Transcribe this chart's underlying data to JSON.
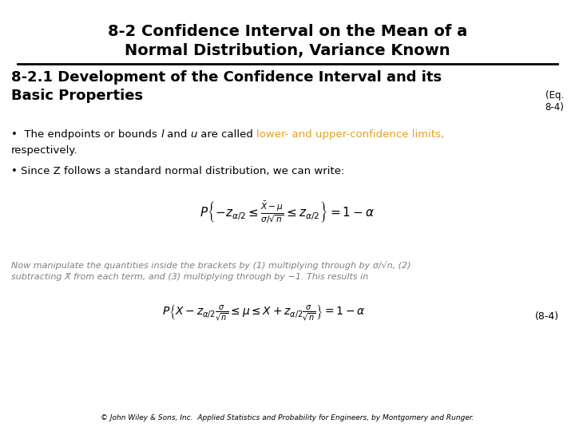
{
  "title_line1": "8-2 Confidence Interval on the Mean of a",
  "title_line2": "Normal Distribution, Variance Known",
  "subtitle_line1": "8-2.1 Development of the Confidence Interval and its",
  "subtitle_line2": "Basic Properties",
  "eq_label": "(Eq.\n8-4)",
  "bullet1_seg1": "•  The endpoints or bounds ",
  "bullet1_l": "l",
  "bullet1_and": " and ",
  "bullet1_u": "u",
  "bullet1_called": " are called ",
  "bullet1_orange": "lower- and upper-confidence limits,",
  "bullet1_line2": "respectively.",
  "bullet2": "• Since Z follows a standard normal distribution, we can write:",
  "gray_line1": "Now manipulate the quantities inside the brackets by (1) multiplying through by σ/√n, (2)",
  "gray_line2": "subtracting X̅ from each term, and (3) multiplying through by −1. This results in",
  "eq_number": "(8-4)",
  "footer": "© John Wiley & Sons, Inc.  Applied Statistics and Probability for Engineers, by Montgomery and Runger.",
  "bg_color": "#ffffff",
  "black": "#000000",
  "orange_color": "#e6a020",
  "gray_color": "#7f7f7f",
  "title_fontsize": 14,
  "subtitle_fontsize": 13,
  "body_fontsize": 9.5,
  "gray_fontsize": 8,
  "footer_fontsize": 6.5,
  "formula1_fontsize": 11,
  "formula2_fontsize": 10,
  "eq_num_fontsize": 9
}
